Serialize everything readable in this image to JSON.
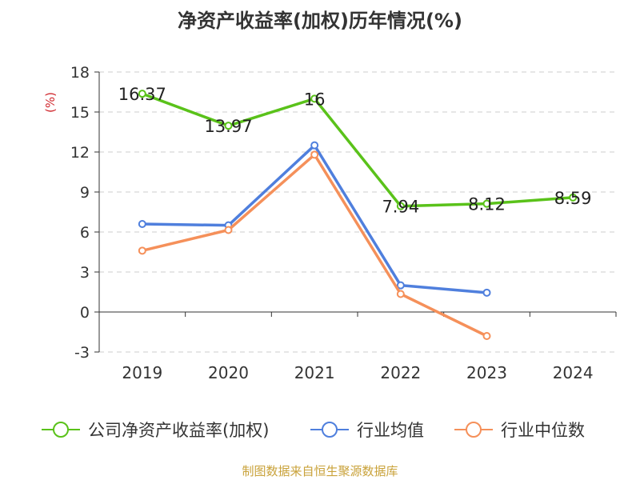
{
  "chart_data": {
    "type": "line",
    "title": "净资产收益率(加权)历年情况(%)",
    "ylabel": "(%)",
    "xlabel": "",
    "categories": [
      "2019",
      "2020",
      "2021",
      "2022",
      "2023",
      "2024"
    ],
    "ylim": [
      -3,
      18
    ],
    "yticks": [
      -3,
      0,
      3,
      6,
      9,
      12,
      15,
      18
    ],
    "grid": true,
    "legend_position": "bottom",
    "series": [
      {
        "name": "公司净资产收益率(加权)",
        "values": [
          16.37,
          13.97,
          16,
          7.94,
          8.12,
          8.59
        ],
        "color": "#5ac21a",
        "labels": [
          "16.37",
          "13.97",
          "16",
          "7.94",
          "8.12",
          "8.59"
        ]
      },
      {
        "name": "行业均值",
        "values": [
          6.6,
          6.5,
          12.5,
          2.0,
          1.45,
          null
        ],
        "color": "#4f7fdd"
      },
      {
        "name": "行业中位数",
        "values": [
          4.6,
          6.15,
          11.8,
          1.35,
          -1.8,
          null
        ],
        "color": "#f5905a"
      }
    ]
  },
  "footer": {
    "source": "制图数据来自恒生聚源数据库"
  }
}
